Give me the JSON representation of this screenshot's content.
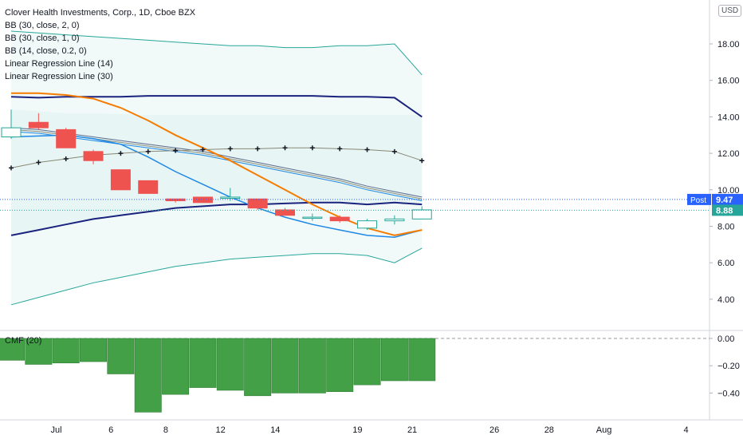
{
  "legend": {
    "title": "Clover Health Investments, Corp., 1D, Cboe BZX",
    "bb1": "BB (30, close, 2, 0)",
    "bb2": "BB (30, close, 1, 0)",
    "bb3": "BB (14, close, 0.2, 0)",
    "lr1": "Linear Regression Line (14)",
    "lr2": "Linear Regression Line (30)"
  },
  "currency": "USD",
  "cmf_label": "CMF (20)",
  "colors": {
    "up": "#26a69a",
    "down": "#ef5350",
    "bb_outer": "#26a69a",
    "bb_mid": "#1a237e",
    "bb_inner": "#1e88e5",
    "lr14": "#f57c00",
    "cross": "#555555",
    "cmf": "#43a047",
    "price_tag": "#2962ff",
    "last_tag": "#26a69a"
  },
  "chart_data": [
    {
      "type": "candlestick",
      "title": "Clover Health Investments, Corp., 1D, Cboe BZX",
      "ylim": [
        3.0,
        19.5
      ],
      "yticks": [
        "18.00",
        "16.00",
        "14.00",
        "12.00",
        "10.00",
        "8.00",
        "6.00",
        "4.00"
      ],
      "ytick_values": [
        18,
        16,
        14,
        12,
        10,
        8,
        6,
        4
      ],
      "xticks": [
        "Jul",
        "6",
        "8",
        "12",
        "14",
        "19",
        "21",
        "26",
        "28",
        "Aug",
        "4"
      ],
      "xtick_index": [
        2,
        4,
        6,
        8,
        10,
        13,
        15,
        18,
        20,
        22,
        25
      ],
      "candles": [
        {
          "o": 12.9,
          "h": 14.4,
          "l": 12.8,
          "c": 13.4
        },
        {
          "o": 13.7,
          "h": 14.2,
          "l": 13.3,
          "c": 13.4
        },
        {
          "o": 13.3,
          "h": 13.4,
          "l": 12.3,
          "c": 12.3
        },
        {
          "o": 12.1,
          "h": 12.2,
          "l": 11.4,
          "c": 11.6
        },
        {
          "o": 11.1,
          "h": 11.1,
          "l": 10.0,
          "c": 10.0
        },
        {
          "o": 10.5,
          "h": 10.5,
          "l": 9.8,
          "c": 9.8
        },
        {
          "o": 9.5,
          "h": 9.5,
          "l": 9.3,
          "c": 9.4
        },
        {
          "o": 9.6,
          "h": 9.6,
          "l": 9.3,
          "c": 9.3
        },
        {
          "o": 9.6,
          "h": 10.1,
          "l": 9.4,
          "c": 9.6
        },
        {
          "o": 9.5,
          "h": 9.5,
          "l": 8.9,
          "c": 9.0
        },
        {
          "o": 8.9,
          "h": 9.0,
          "l": 8.6,
          "c": 8.6
        },
        {
          "o": 8.5,
          "h": 8.7,
          "l": 8.3,
          "c": 8.5
        },
        {
          "o": 8.5,
          "h": 8.6,
          "l": 8.2,
          "c": 8.3
        },
        {
          "o": 7.9,
          "h": 8.4,
          "l": 7.8,
          "c": 8.3
        },
        {
          "o": 8.3,
          "h": 8.6,
          "l": 8.1,
          "c": 8.4
        },
        {
          "o": 8.4,
          "h": 9.1,
          "l": 8.4,
          "c": 8.9
        }
      ],
      "bb30_upper": [
        18.7,
        18.6,
        18.5,
        18.4,
        18.3,
        18.2,
        18.1,
        18.0,
        17.9,
        17.9,
        17.8,
        17.8,
        17.9,
        17.9,
        18.0,
        16.3
      ],
      "bb30_lower": [
        3.7,
        4.1,
        4.5,
        4.9,
        5.2,
        5.5,
        5.8,
        6.0,
        6.2,
        6.3,
        6.4,
        6.5,
        6.5,
        6.4,
        6.0,
        6.8
      ],
      "bb30_basis": [
        15.1,
        15.05,
        15.1,
        15.1,
        15.1,
        15.15,
        15.15,
        15.15,
        15.15,
        15.15,
        15.15,
        15.15,
        15.1,
        15.1,
        15.05,
        14.0
      ],
      "bb30_1_upper": [
        14.4,
        14.3,
        14.2,
        14.2,
        14.15,
        14.1,
        14.1,
        14.1,
        14.1,
        14.1,
        14.1,
        14.1,
        14.1,
        14.1,
        14.1,
        14.1
      ],
      "bb30_1_lower": [
        7.5,
        7.8,
        8.1,
        8.4,
        8.6,
        8.8,
        9.0,
        9.1,
        9.2,
        9.2,
        9.25,
        9.3,
        9.3,
        9.2,
        9.3,
        9.2
      ],
      "bb14_upper": [
        13.4,
        13.3,
        13.1,
        12.9,
        12.7,
        12.5,
        12.3,
        12.1,
        11.8,
        11.5,
        11.2,
        10.9,
        10.6,
        10.2,
        9.9,
        9.6
      ],
      "bb14_lower": [
        13.2,
        13.1,
        12.9,
        12.7,
        12.5,
        12.3,
        12.1,
        11.9,
        11.6,
        11.3,
        11.0,
        10.7,
        10.4,
        10.0,
        9.7,
        9.4
      ],
      "bb14_basis": [
        13.3,
        13.2,
        13.0,
        12.8,
        12.6,
        12.4,
        12.2,
        12.0,
        11.7,
        11.4,
        11.1,
        10.8,
        10.5,
        10.1,
        9.8,
        9.5
      ],
      "lr14": [
        15.3,
        15.3,
        15.2,
        15.0,
        14.5,
        13.8,
        13.0,
        12.3,
        11.6,
        10.8,
        10.0,
        9.2,
        8.5,
        7.9,
        7.5,
        7.8
      ],
      "lr30_inner": [
        12.9,
        12.95,
        13.0,
        12.8,
        12.5,
        11.8,
        11.0,
        10.3,
        9.6,
        9.0,
        8.5,
        8.1,
        7.8,
        7.5,
        7.4,
        7.8
      ],
      "crosses": [
        11.2,
        11.5,
        11.7,
        11.9,
        12.0,
        12.1,
        12.15,
        12.2,
        12.25,
        12.25,
        12.3,
        12.3,
        12.25,
        12.2,
        12.1,
        11.6
      ],
      "post_price": "9.47",
      "post_label": "Post",
      "last_price": "8.88",
      "post_value": 9.47,
      "last_value": 8.88
    },
    {
      "type": "bar",
      "title": "CMF (20)",
      "ylim": [
        -0.55,
        0.05
      ],
      "yticks": [
        "0.00",
        "−0.20",
        "−0.40"
      ],
      "ytick_values": [
        0.0,
        -0.2,
        -0.4
      ],
      "values": [
        -0.16,
        -0.19,
        -0.18,
        -0.17,
        -0.26,
        -0.54,
        -0.41,
        -0.36,
        -0.38,
        -0.42,
        -0.4,
        -0.4,
        -0.39,
        -0.34,
        -0.31,
        -0.31
      ]
    }
  ]
}
